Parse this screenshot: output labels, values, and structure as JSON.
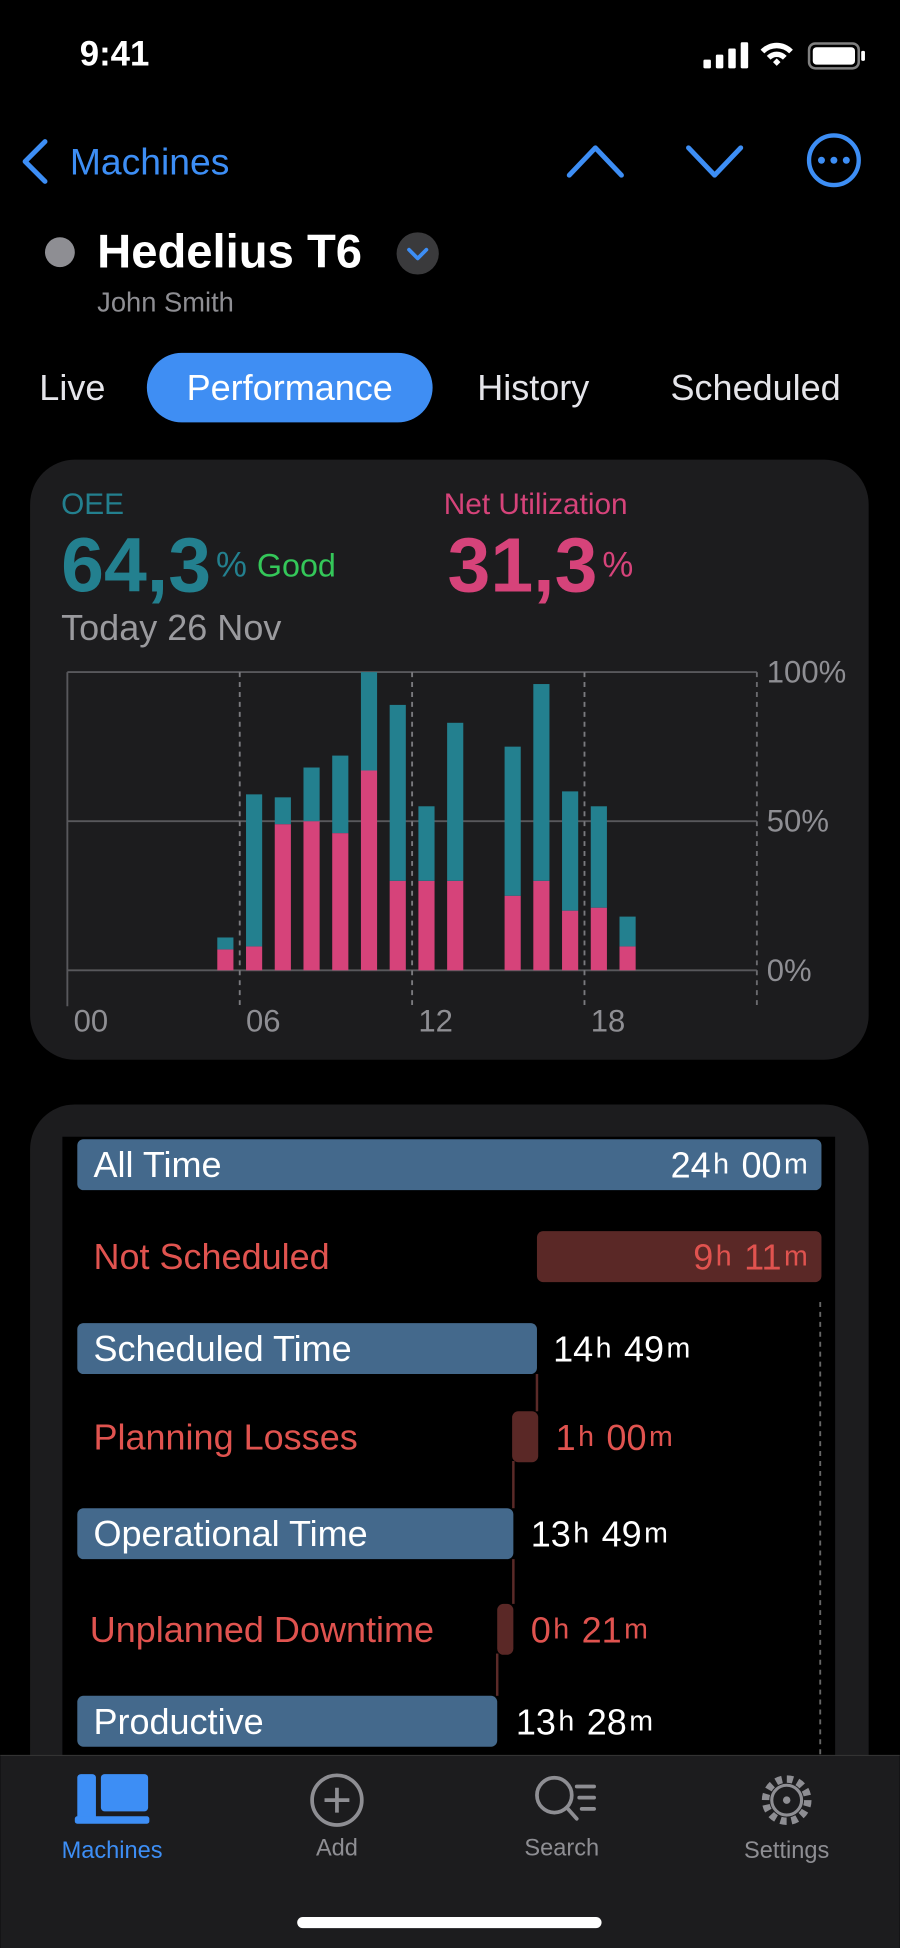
{
  "status_bar": {
    "time": "9:41"
  },
  "nav": {
    "back": "Machines"
  },
  "header": {
    "title": "Hedelius T6",
    "subtitle": "John Smith"
  },
  "tabs": {
    "items": [
      "Live",
      "Performance",
      "History",
      "Scheduled"
    ],
    "active": 1
  },
  "summary": {
    "oee_value": "64,3",
    "oee_unit": "%",
    "oee_rating": "Good",
    "util_value": "31,3",
    "util_unit": "%",
    "date": "Today 26 Nov"
  },
  "chart_data": {
    "type": "bar",
    "stacked": true,
    "x": [
      0,
      1,
      2,
      3,
      4,
      5,
      6,
      7,
      8,
      9,
      10,
      11,
      12,
      13,
      14,
      15,
      16,
      17,
      18,
      19,
      20,
      21,
      22,
      23
    ],
    "xlim": [
      0,
      24
    ],
    "xticks": [
      {
        "value": 0,
        "label": "00"
      },
      {
        "value": 6,
        "label": "06"
      },
      {
        "value": 12,
        "label": "12"
      },
      {
        "value": 18,
        "label": "18"
      }
    ],
    "ylim": [
      0,
      100
    ],
    "yticks": [
      {
        "value": 0,
        "label": "0%"
      },
      {
        "value": 50,
        "label": "50%"
      },
      {
        "value": 100,
        "label": "100%"
      }
    ],
    "grid": true,
    "series": [
      {
        "name": "Net Utilization",
        "color": "#d6437a",
        "values": [
          0,
          0,
          0,
          0,
          0,
          7,
          8,
          49,
          50,
          46,
          67,
          30,
          30,
          30,
          0,
          25,
          30,
          20,
          21,
          8,
          0,
          0,
          0,
          0
        ]
      },
      {
        "name": "OEE",
        "color": "#23808f",
        "values": [
          0,
          0,
          0,
          0,
          0,
          4,
          51,
          9,
          18,
          26,
          33,
          59,
          25,
          53,
          0,
          50,
          66,
          40,
          34,
          10,
          0,
          0,
          0,
          0
        ]
      }
    ]
  },
  "breakdown": {
    "rows": [
      {
        "label": "All Time",
        "hours": "24",
        "hours_unit": "h",
        "minutes": "00",
        "minutes_unit": "m",
        "kind": "time"
      },
      {
        "label": "Not Scheduled",
        "hours": "9",
        "hours_unit": "h",
        "minutes": "11",
        "minutes_unit": "m",
        "kind": "loss"
      },
      {
        "label": "Scheduled Time",
        "hours": "14",
        "hours_unit": "h",
        "minutes": "49",
        "minutes_unit": "m",
        "kind": "time"
      },
      {
        "label": "Planning Losses",
        "hours": "1",
        "hours_unit": "h",
        "minutes": "00",
        "minutes_unit": "m",
        "kind": "loss"
      },
      {
        "label": "Operational Time",
        "hours": "13",
        "hours_unit": "h",
        "minutes": "49",
        "minutes_unit": "m",
        "kind": "time"
      },
      {
        "label": "Unplanned Downtime",
        "hours": "0",
        "hours_unit": "h",
        "minutes": "21",
        "minutes_unit": "m",
        "kind": "loss"
      },
      {
        "label": "Productive",
        "hours": "13",
        "hours_unit": "h",
        "minutes": "28",
        "minutes_unit": "m",
        "kind": "time"
      }
    ]
  },
  "tab_bar": {
    "items": [
      "Machines",
      "Add",
      "Search",
      "Settings"
    ],
    "active": 0
  }
}
